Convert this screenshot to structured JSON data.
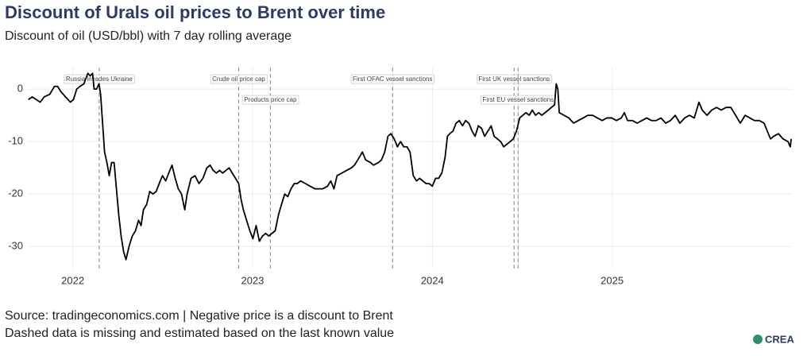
{
  "chart_data": {
    "type": "line",
    "title": "Discount of Urals oil prices to Brent over time",
    "subtitle": "Discount of oil (USD/bbl) with 7 day rolling average",
    "source": "Source: tradingeconomics.com | Negative price is a discount to Brent",
    "note": "Dashed data is missing and estimated based on the last known value",
    "logo": "CREA",
    "xlim": [
      2021.75,
      2026.0
    ],
    "xticks": [
      2022,
      2023,
      2024,
      2025
    ],
    "ylim": [
      -34.2,
      4.1
    ],
    "yticks": [
      0,
      -10,
      -20,
      -30
    ],
    "grid": true,
    "events": [
      {
        "label": "Russia invades Ukraine",
        "x": 2022.147
      },
      {
        "label": "Crude oil price cap",
        "x": 2022.923
      },
      {
        "label": "Products price cap",
        "x": 2023.099
      },
      {
        "label": "First OFAC vessel sanctions",
        "x": 2023.779
      },
      {
        "label": "First UK vessel sanctions",
        "x": 2024.455
      },
      {
        "label": "First EU vessel sanctions",
        "x": 2024.477
      }
    ],
    "series": [
      {
        "color": "#000000",
        "x": [
          2021.753,
          2021.775,
          2021.819,
          2021.841,
          2021.872,
          2021.898,
          2021.916,
          2021.934,
          2021.96,
          2021.987,
          2022.004,
          2022.022,
          2022.04,
          2022.062,
          2022.084,
          2022.097,
          2022.11,
          2022.119,
          2022.132,
          2022.146,
          2022.155,
          2022.163,
          2022.177,
          2022.19,
          2022.203,
          2022.216,
          2022.23,
          2022.243,
          2022.256,
          2022.269,
          2022.283,
          2022.296,
          2022.313,
          2022.331,
          2022.349,
          2022.366,
          2022.38,
          2022.393,
          2022.411,
          2022.428,
          2022.446,
          2022.464,
          2022.481,
          2022.499,
          2022.517,
          2022.534,
          2022.552,
          2022.57,
          2022.587,
          2022.605,
          2022.623,
          2022.636,
          2022.658,
          2022.68,
          2022.702,
          2022.724,
          2022.746,
          2022.764,
          2022.781,
          2022.799,
          2022.817,
          2022.834,
          2022.852,
          2022.87,
          2022.887,
          2022.905,
          2022.923,
          2022.936,
          2022.949,
          2022.967,
          2022.985,
          2023.002,
          2023.02,
          2023.038,
          2023.055,
          2023.073,
          2023.091,
          2023.108,
          2023.126,
          2023.144,
          2023.161,
          2023.179,
          2023.196,
          2023.214,
          2023.232,
          2023.249,
          2023.267,
          2023.294,
          2023.32,
          2023.347,
          2023.364,
          2023.391,
          2023.417,
          2023.435,
          2023.453,
          2023.47,
          2023.497,
          2023.523,
          2023.55,
          2023.567,
          2023.594,
          2023.611,
          2023.629,
          2023.656,
          2023.673,
          2023.7,
          2023.717,
          2023.735,
          2023.753,
          2023.77,
          2023.788,
          2023.806,
          2023.823,
          2023.841,
          2023.859,
          2023.876,
          2023.894,
          2023.912,
          2023.929,
          2023.947,
          2023.965,
          2023.982,
          2024.0,
          2024.018,
          2024.035,
          2024.053,
          2024.071,
          2024.084,
          2024.097,
          2024.115,
          2024.132,
          2024.15,
          2024.168,
          2024.185,
          2024.203,
          2024.221,
          2024.238,
          2024.256,
          2024.274,
          2024.291,
          2024.309,
          2024.327,
          2024.344,
          2024.362,
          2024.38,
          2024.397,
          2024.415,
          2024.433,
          2024.45,
          2024.468,
          2024.486,
          2024.503,
          2024.521,
          2024.539,
          2024.556,
          2024.574,
          2024.592,
          2024.609,
          2024.627,
          2024.645,
          2024.662,
          2024.68,
          2024.689,
          2024.698,
          2024.706,
          2024.733,
          2024.759,
          2024.786,
          2024.812,
          2024.839,
          2024.865,
          2024.892,
          2024.918,
          2024.945,
          2024.971,
          2024.998,
          2025.024,
          2025.051,
          2025.068,
          2025.086,
          2025.113,
          2025.139,
          2025.166,
          2025.192,
          2025.219,
          2025.245,
          2025.272,
          2025.298,
          2025.324,
          2025.351,
          2025.377,
          2025.404,
          2025.43,
          2025.457,
          2025.483,
          2025.501,
          2025.528,
          2025.554,
          2025.581,
          2025.607,
          2025.634,
          2025.66,
          2025.687,
          2025.713,
          2025.74,
          2025.766,
          2025.792,
          2025.819,
          2025.845,
          2025.863,
          2025.881,
          2025.898,
          2025.925,
          2025.951,
          2025.978,
          2025.991,
          2025.996
        ],
        "values": [
          -2,
          -1.5,
          -2.5,
          -1.5,
          -1,
          0.5,
          0.5,
          -0.5,
          -1.5,
          -2.5,
          -2,
          0,
          0.5,
          1,
          3,
          2.5,
          3,
          0,
          0,
          1,
          -1,
          -5,
          -12,
          -14,
          -16.5,
          -14,
          -14,
          -19,
          -24,
          -28,
          -31,
          -32.5,
          -30,
          -28,
          -27,
          -25,
          -26,
          -23,
          -22,
          -19.5,
          -20,
          -19.5,
          -18,
          -16.5,
          -17.5,
          -16,
          -14.5,
          -17,
          -19,
          -20,
          -23,
          -20,
          -17,
          -16.5,
          -18,
          -17,
          -15,
          -14.5,
          -15.5,
          -16,
          -15.5,
          -16,
          -15.5,
          -15,
          -16,
          -17,
          -18,
          -21,
          -23,
          -25,
          -27,
          -28.5,
          -26,
          -29,
          -28,
          -27.5,
          -28,
          -27.5,
          -27,
          -24,
          -22,
          -20,
          -20.5,
          -19,
          -18,
          -18,
          -17.5,
          -18,
          -18.5,
          -19,
          -19,
          -19,
          -18.5,
          -17.5,
          -19,
          -16.5,
          -16,
          -15.5,
          -15,
          -14.5,
          -13,
          -12,
          -13.5,
          -14,
          -14.5,
          -14,
          -13.5,
          -12,
          -9,
          -8.5,
          -9.5,
          -11,
          -10,
          -11,
          -11,
          -12,
          -16.5,
          -17.5,
          -17,
          -17.5,
          -18,
          -18,
          -18.5,
          -17,
          -17,
          -16,
          -13,
          -9,
          -8.5,
          -8,
          -6.5,
          -6,
          -7,
          -6,
          -6.5,
          -8,
          -9,
          -7,
          -7.5,
          -9,
          -8,
          -7,
          -9,
          -9.5,
          -10,
          -11,
          -10.5,
          -10,
          -9.5,
          -8,
          -5.5,
          -5,
          -4.5,
          -5,
          -4,
          -5,
          -4.5,
          -5,
          -4.5,
          -4,
          -3.5,
          -3,
          1,
          0,
          -4.5,
          -5,
          -5.5,
          -6.5,
          -6,
          -5.5,
          -5,
          -5,
          -5.5,
          -6,
          -5.5,
          -5.5,
          -6,
          -5.5,
          -4.5,
          -6,
          -6,
          -6.5,
          -6,
          -5.5,
          -6,
          -6,
          -5.5,
          -6.5,
          -6,
          -5,
          -6.5,
          -5.5,
          -5,
          -5.5,
          -2.5,
          -4,
          -5,
          -4,
          -3.5,
          -4,
          -3.5,
          -3.5,
          -5,
          -6.5,
          -5,
          -5.5,
          -6,
          -6,
          -6.5,
          -8,
          -9.5,
          -9,
          -8.5,
          -9.5,
          -10,
          -11,
          -9.5
        ]
      }
    ]
  }
}
